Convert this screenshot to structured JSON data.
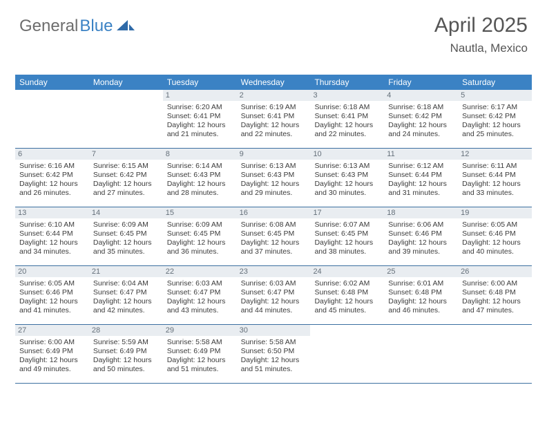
{
  "logo": {
    "text1": "General",
    "text2": "Blue"
  },
  "header": {
    "month_title": "April 2025",
    "location": "Nautla, Mexico"
  },
  "colors": {
    "header_bar": "#3b82c4",
    "week_divider": "#3b6fa0",
    "daynum_bg": "#e9edf1",
    "daynum_fg": "#65707a",
    "logo_gray": "#6d6d6d",
    "logo_blue": "#3b82c4",
    "heading_gray": "#555555"
  },
  "weekdays": [
    "Sunday",
    "Monday",
    "Tuesday",
    "Wednesday",
    "Thursday",
    "Friday",
    "Saturday"
  ],
  "weeks": [
    [
      {
        "day": "",
        "sunrise": "",
        "sunset": "",
        "daylight1": "",
        "daylight2": ""
      },
      {
        "day": "",
        "sunrise": "",
        "sunset": "",
        "daylight1": "",
        "daylight2": ""
      },
      {
        "day": "1",
        "sunrise": "Sunrise: 6:20 AM",
        "sunset": "Sunset: 6:41 PM",
        "daylight1": "Daylight: 12 hours",
        "daylight2": "and 21 minutes."
      },
      {
        "day": "2",
        "sunrise": "Sunrise: 6:19 AM",
        "sunset": "Sunset: 6:41 PM",
        "daylight1": "Daylight: 12 hours",
        "daylight2": "and 22 minutes."
      },
      {
        "day": "3",
        "sunrise": "Sunrise: 6:18 AM",
        "sunset": "Sunset: 6:41 PM",
        "daylight1": "Daylight: 12 hours",
        "daylight2": "and 22 minutes."
      },
      {
        "day": "4",
        "sunrise": "Sunrise: 6:18 AM",
        "sunset": "Sunset: 6:42 PM",
        "daylight1": "Daylight: 12 hours",
        "daylight2": "and 24 minutes."
      },
      {
        "day": "5",
        "sunrise": "Sunrise: 6:17 AM",
        "sunset": "Sunset: 6:42 PM",
        "daylight1": "Daylight: 12 hours",
        "daylight2": "and 25 minutes."
      }
    ],
    [
      {
        "day": "6",
        "sunrise": "Sunrise: 6:16 AM",
        "sunset": "Sunset: 6:42 PM",
        "daylight1": "Daylight: 12 hours",
        "daylight2": "and 26 minutes."
      },
      {
        "day": "7",
        "sunrise": "Sunrise: 6:15 AM",
        "sunset": "Sunset: 6:42 PM",
        "daylight1": "Daylight: 12 hours",
        "daylight2": "and 27 minutes."
      },
      {
        "day": "8",
        "sunrise": "Sunrise: 6:14 AM",
        "sunset": "Sunset: 6:43 PM",
        "daylight1": "Daylight: 12 hours",
        "daylight2": "and 28 minutes."
      },
      {
        "day": "9",
        "sunrise": "Sunrise: 6:13 AM",
        "sunset": "Sunset: 6:43 PM",
        "daylight1": "Daylight: 12 hours",
        "daylight2": "and 29 minutes."
      },
      {
        "day": "10",
        "sunrise": "Sunrise: 6:13 AM",
        "sunset": "Sunset: 6:43 PM",
        "daylight1": "Daylight: 12 hours",
        "daylight2": "and 30 minutes."
      },
      {
        "day": "11",
        "sunrise": "Sunrise: 6:12 AM",
        "sunset": "Sunset: 6:44 PM",
        "daylight1": "Daylight: 12 hours",
        "daylight2": "and 31 minutes."
      },
      {
        "day": "12",
        "sunrise": "Sunrise: 6:11 AM",
        "sunset": "Sunset: 6:44 PM",
        "daylight1": "Daylight: 12 hours",
        "daylight2": "and 33 minutes."
      }
    ],
    [
      {
        "day": "13",
        "sunrise": "Sunrise: 6:10 AM",
        "sunset": "Sunset: 6:44 PM",
        "daylight1": "Daylight: 12 hours",
        "daylight2": "and 34 minutes."
      },
      {
        "day": "14",
        "sunrise": "Sunrise: 6:09 AM",
        "sunset": "Sunset: 6:45 PM",
        "daylight1": "Daylight: 12 hours",
        "daylight2": "and 35 minutes."
      },
      {
        "day": "15",
        "sunrise": "Sunrise: 6:09 AM",
        "sunset": "Sunset: 6:45 PM",
        "daylight1": "Daylight: 12 hours",
        "daylight2": "and 36 minutes."
      },
      {
        "day": "16",
        "sunrise": "Sunrise: 6:08 AM",
        "sunset": "Sunset: 6:45 PM",
        "daylight1": "Daylight: 12 hours",
        "daylight2": "and 37 minutes."
      },
      {
        "day": "17",
        "sunrise": "Sunrise: 6:07 AM",
        "sunset": "Sunset: 6:45 PM",
        "daylight1": "Daylight: 12 hours",
        "daylight2": "and 38 minutes."
      },
      {
        "day": "18",
        "sunrise": "Sunrise: 6:06 AM",
        "sunset": "Sunset: 6:46 PM",
        "daylight1": "Daylight: 12 hours",
        "daylight2": "and 39 minutes."
      },
      {
        "day": "19",
        "sunrise": "Sunrise: 6:05 AM",
        "sunset": "Sunset: 6:46 PM",
        "daylight1": "Daylight: 12 hours",
        "daylight2": "and 40 minutes."
      }
    ],
    [
      {
        "day": "20",
        "sunrise": "Sunrise: 6:05 AM",
        "sunset": "Sunset: 6:46 PM",
        "daylight1": "Daylight: 12 hours",
        "daylight2": "and 41 minutes."
      },
      {
        "day": "21",
        "sunrise": "Sunrise: 6:04 AM",
        "sunset": "Sunset: 6:47 PM",
        "daylight1": "Daylight: 12 hours",
        "daylight2": "and 42 minutes."
      },
      {
        "day": "22",
        "sunrise": "Sunrise: 6:03 AM",
        "sunset": "Sunset: 6:47 PM",
        "daylight1": "Daylight: 12 hours",
        "daylight2": "and 43 minutes."
      },
      {
        "day": "23",
        "sunrise": "Sunrise: 6:03 AM",
        "sunset": "Sunset: 6:47 PM",
        "daylight1": "Daylight: 12 hours",
        "daylight2": "and 44 minutes."
      },
      {
        "day": "24",
        "sunrise": "Sunrise: 6:02 AM",
        "sunset": "Sunset: 6:48 PM",
        "daylight1": "Daylight: 12 hours",
        "daylight2": "and 45 minutes."
      },
      {
        "day": "25",
        "sunrise": "Sunrise: 6:01 AM",
        "sunset": "Sunset: 6:48 PM",
        "daylight1": "Daylight: 12 hours",
        "daylight2": "and 46 minutes."
      },
      {
        "day": "26",
        "sunrise": "Sunrise: 6:00 AM",
        "sunset": "Sunset: 6:48 PM",
        "daylight1": "Daylight: 12 hours",
        "daylight2": "and 47 minutes."
      }
    ],
    [
      {
        "day": "27",
        "sunrise": "Sunrise: 6:00 AM",
        "sunset": "Sunset: 6:49 PM",
        "daylight1": "Daylight: 12 hours",
        "daylight2": "and 49 minutes."
      },
      {
        "day": "28",
        "sunrise": "Sunrise: 5:59 AM",
        "sunset": "Sunset: 6:49 PM",
        "daylight1": "Daylight: 12 hours",
        "daylight2": "and 50 minutes."
      },
      {
        "day": "29",
        "sunrise": "Sunrise: 5:58 AM",
        "sunset": "Sunset: 6:49 PM",
        "daylight1": "Daylight: 12 hours",
        "daylight2": "and 51 minutes."
      },
      {
        "day": "30",
        "sunrise": "Sunrise: 5:58 AM",
        "sunset": "Sunset: 6:50 PM",
        "daylight1": "Daylight: 12 hours",
        "daylight2": "and 51 minutes."
      },
      {
        "day": "",
        "sunrise": "",
        "sunset": "",
        "daylight1": "",
        "daylight2": ""
      },
      {
        "day": "",
        "sunrise": "",
        "sunset": "",
        "daylight1": "",
        "daylight2": ""
      },
      {
        "day": "",
        "sunrise": "",
        "sunset": "",
        "daylight1": "",
        "daylight2": ""
      }
    ]
  ]
}
